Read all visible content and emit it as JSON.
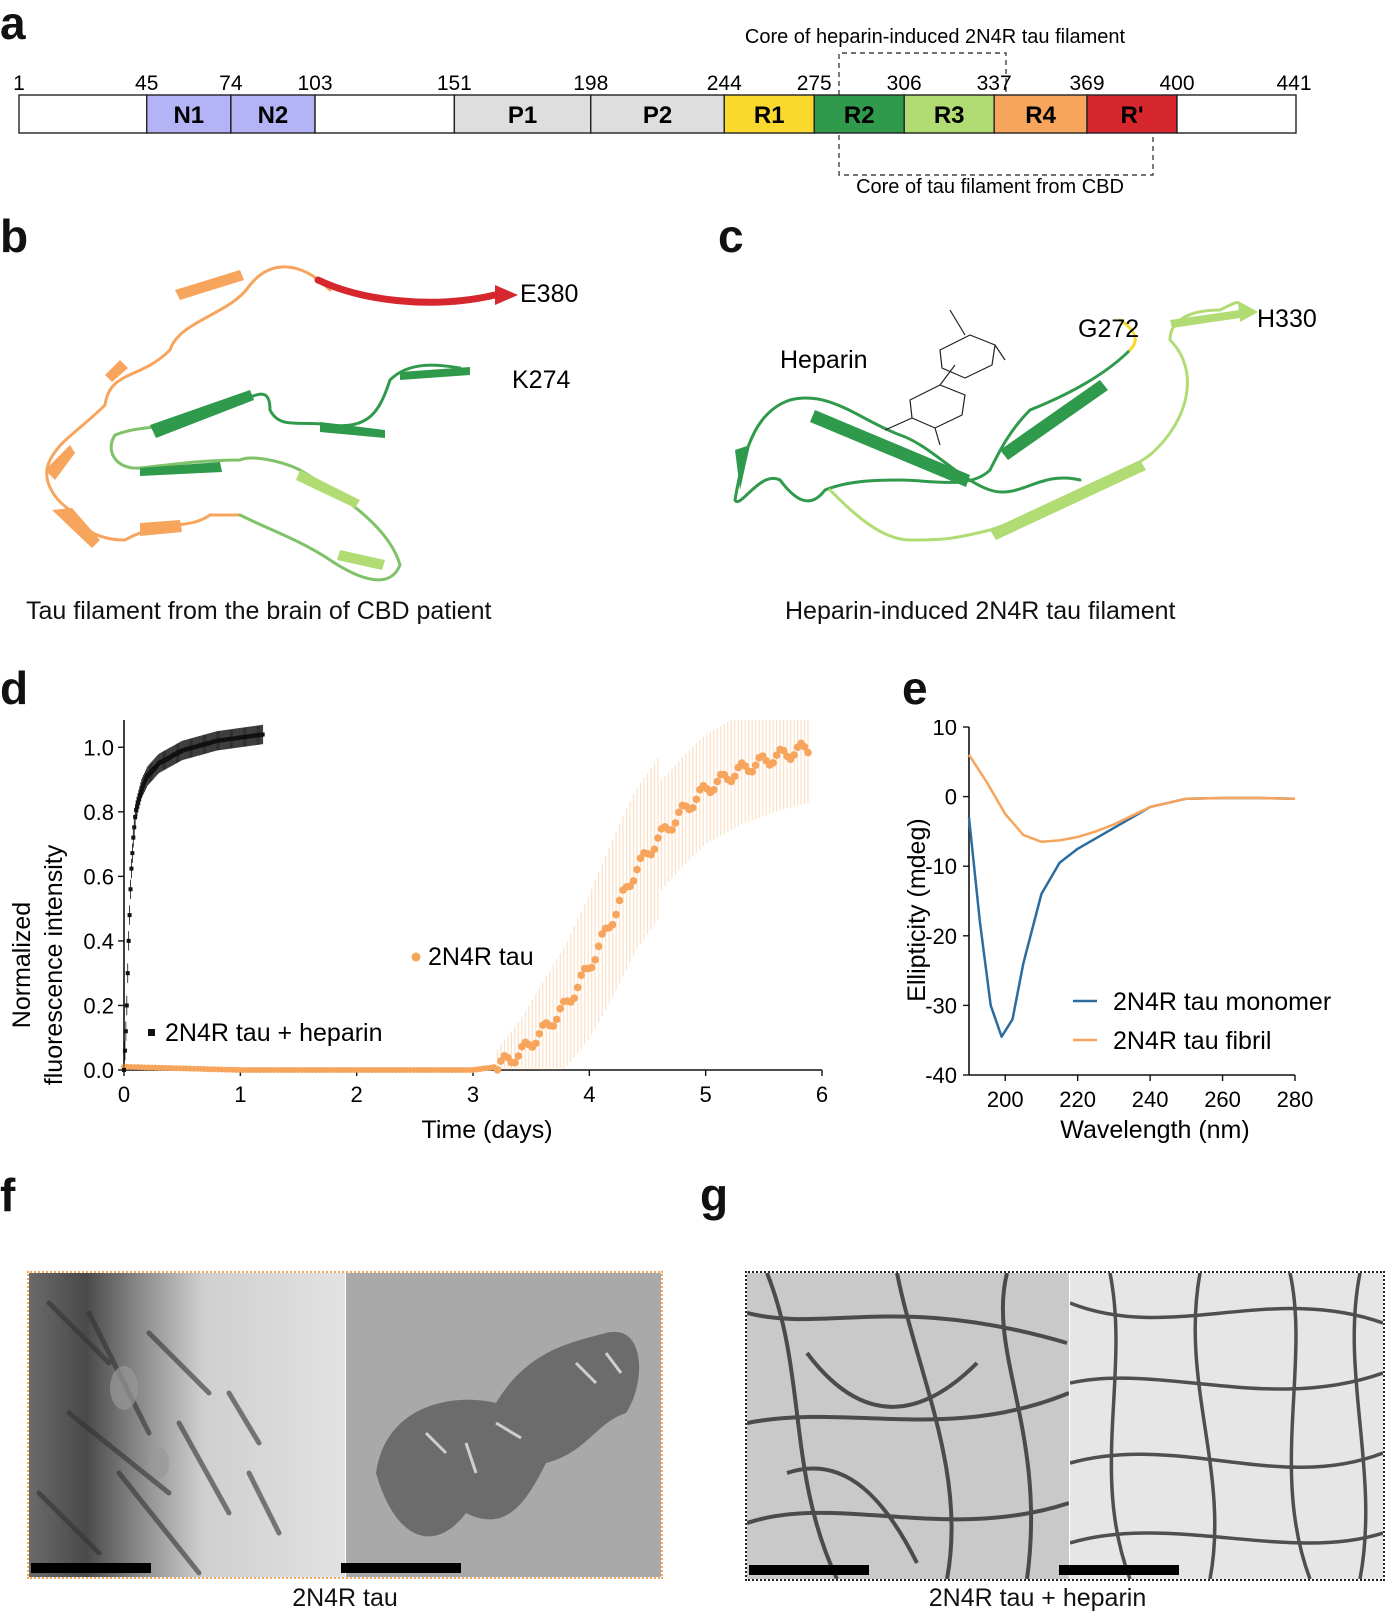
{
  "panels": {
    "a": "a",
    "b": "b",
    "c": "c",
    "d": "d",
    "e": "e",
    "f": "f",
    "g": "g"
  },
  "panel_a": {
    "top_bracket_label": "Core of heparin-induced 2N4R tau filament",
    "bottom_bracket_label": "Core of tau filament from CBD",
    "positions": [
      "1",
      "45",
      "74",
      "103",
      "151",
      "198",
      "244",
      "275",
      "306",
      "337",
      "369",
      "400",
      "441"
    ],
    "domains": [
      {
        "label": "",
        "color": "#ffffff"
      },
      {
        "label": "N1",
        "color": "#b3b3f5"
      },
      {
        "label": "N2",
        "color": "#b3b3f5"
      },
      {
        "label": "",
        "color": "#ffffff"
      },
      {
        "label": "P1",
        "color": "#dedede"
      },
      {
        "label": "P2",
        "color": "#dedede"
      },
      {
        "label": "R1",
        "color": "#f9d92e"
      },
      {
        "label": "R2",
        "color": "#2f9a4b"
      },
      {
        "label": "R3",
        "color": "#b1dc74"
      },
      {
        "label": "R4",
        "color": "#f7a55d"
      },
      {
        "label": "R'",
        "color": "#d6272f"
      },
      {
        "label": "",
        "color": "#ffffff"
      }
    ]
  },
  "panel_b": {
    "labels": {
      "e380": "E380",
      "k274": "K274"
    },
    "caption": "Tau filament from the brain of CBD patient"
  },
  "panel_c": {
    "labels": {
      "heparin": "Heparin",
      "g272": "G272",
      "h330": "H330"
    },
    "caption": "Heparin-induced 2N4R tau filament"
  },
  "panel_d": {
    "ylabel_line1": "Normalized",
    "ylabel_line2": "fluorescence intensity",
    "xlabel": "Time (days)",
    "yticks": [
      "0.0",
      "0.2",
      "0.4",
      "0.6",
      "0.8",
      "1.0"
    ],
    "xticks": [
      "0",
      "1",
      "2",
      "3",
      "4",
      "5",
      "6"
    ],
    "legend_heparin": "2N4R tau + heparin",
    "legend_tau": "2N4R tau"
  },
  "panel_e": {
    "ylabel": "Ellipticity (mdeg)",
    "xlabel": "Wavelength (nm)",
    "yticks": [
      "10",
      "0",
      "-10",
      "-20",
      "-30",
      "-40"
    ],
    "xticks": [
      "200",
      "220",
      "240",
      "260",
      "280"
    ],
    "legend_monomer": "2N4R tau monomer",
    "legend_fibril": "2N4R tau fibril"
  },
  "panel_f": {
    "caption": "2N4R tau"
  },
  "panel_g": {
    "caption": "2N4R tau + heparin"
  },
  "colors": {
    "orange": "#f7a55d",
    "blue": "#2c6c9e",
    "black": "#111111"
  },
  "chart_data": [
    {
      "type": "scatter",
      "title": "",
      "xlabel": "Time (days)",
      "ylabel": "Normalized fluorescence intensity",
      "xlim": [
        0,
        6
      ],
      "ylim": [
        0,
        1.1
      ],
      "series": [
        {
          "name": "2N4R tau + heparin",
          "x": [
            0,
            0.02,
            0.04,
            0.06,
            0.08,
            0.1,
            0.15,
            0.2,
            0.3,
            0.4,
            0.5,
            0.6,
            0.8,
            1.0,
            1.2
          ],
          "y": [
            0.0,
            0.15,
            0.4,
            0.6,
            0.72,
            0.8,
            0.87,
            0.91,
            0.95,
            0.97,
            0.99,
            1.0,
            1.02,
            1.03,
            1.04
          ]
        },
        {
          "name": "2N4R tau",
          "x": [
            0,
            1,
            2,
            3,
            3.2,
            3.4,
            3.6,
            3.8,
            4.0,
            4.2,
            4.4,
            4.6,
            4.8,
            5.0,
            5.3,
            5.6,
            5.9
          ],
          "y": [
            0.01,
            0.0,
            0.0,
            0.0,
            0.01,
            0.05,
            0.12,
            0.2,
            0.32,
            0.47,
            0.62,
            0.72,
            0.8,
            0.87,
            0.93,
            0.97,
            1.0
          ]
        }
      ]
    },
    {
      "type": "line",
      "title": "",
      "xlabel": "Wavelength (nm)",
      "ylabel": "Ellipticity (mdeg)",
      "xlim": [
        190,
        280
      ],
      "ylim": [
        -40,
        10
      ],
      "series": [
        {
          "name": "2N4R tau monomer",
          "x": [
            190,
            193,
            196,
            199,
            202,
            205,
            210,
            215,
            220,
            230,
            240,
            250,
            260,
            270,
            280
          ],
          "y": [
            -3,
            -18,
            -30,
            -34.5,
            -32,
            -24,
            -14,
            -9.5,
            -7.5,
            -4.5,
            -1.5,
            -0.3,
            -0.2,
            -0.2,
            -0.3
          ]
        },
        {
          "name": "2N4R tau fibril",
          "x": [
            190,
            195,
            200,
            205,
            210,
            215,
            220,
            225,
            230,
            240,
            250,
            260,
            270,
            280
          ],
          "y": [
            6,
            2,
            -2.5,
            -5.5,
            -6.5,
            -6.3,
            -5.8,
            -5,
            -4,
            -1.5,
            -0.3,
            -0.2,
            -0.2,
            -0.3
          ]
        }
      ]
    }
  ]
}
